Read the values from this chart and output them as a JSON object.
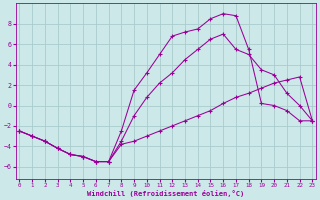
{
  "xlabel": "Windchill (Refroidissement éolien,°C)",
  "bg_color": "#cce8e8",
  "grid_color": "#aacccc",
  "line_color": "#990099",
  "x_ticks": [
    0,
    1,
    2,
    3,
    4,
    5,
    6,
    7,
    8,
    9,
    10,
    11,
    12,
    13,
    14,
    15,
    16,
    17,
    18,
    19,
    20,
    21,
    22,
    23
  ],
  "y_ticks": [
    -6,
    -4,
    -2,
    0,
    2,
    4,
    6,
    8
  ],
  "xlim": [
    -0.3,
    23.3
  ],
  "ylim": [
    -7.2,
    10.0
  ],
  "top_line": {
    "x": [
      0,
      1,
      2,
      3,
      4,
      5,
      6,
      7,
      8,
      9,
      10,
      11,
      12,
      13,
      14,
      15,
      16,
      17,
      18,
      19,
      20,
      21,
      22,
      23
    ],
    "y": [
      -2.5,
      -3.0,
      -3.5,
      -4.2,
      -4.8,
      -5.0,
      -5.5,
      -5.5,
      -2.5,
      1.5,
      3.2,
      5.0,
      6.8,
      7.2,
      7.5,
      8.5,
      9.0,
      8.8,
      5.5,
      0.2,
      0.0,
      -0.5,
      -1.5,
      -1.5
    ]
  },
  "mid_line": {
    "x": [
      0,
      1,
      2,
      3,
      4,
      5,
      6,
      7,
      8,
      9,
      10,
      11,
      12,
      13,
      14,
      15,
      16,
      17,
      18,
      19,
      20,
      21,
      22,
      23
    ],
    "y": [
      -2.5,
      -3.0,
      -3.5,
      -4.2,
      -4.8,
      -5.0,
      -5.5,
      -5.5,
      -3.5,
      -1.0,
      0.8,
      2.2,
      3.2,
      4.5,
      5.5,
      6.5,
      7.0,
      5.5,
      5.0,
      3.5,
      3.0,
      1.2,
      0.0,
      -1.5
    ]
  },
  "bot_line": {
    "x": [
      0,
      1,
      2,
      3,
      4,
      5,
      6,
      7,
      8,
      9,
      10,
      11,
      12,
      13,
      14,
      15,
      16,
      17,
      18,
      19,
      20,
      21,
      22,
      23
    ],
    "y": [
      -2.5,
      -3.0,
      -3.5,
      -4.2,
      -4.8,
      -5.0,
      -5.5,
      -5.5,
      -3.8,
      -3.5,
      -3.0,
      -2.5,
      -2.0,
      -1.5,
      -1.0,
      -0.5,
      0.2,
      0.8,
      1.2,
      1.7,
      2.2,
      2.5,
      2.8,
      -1.5
    ]
  }
}
